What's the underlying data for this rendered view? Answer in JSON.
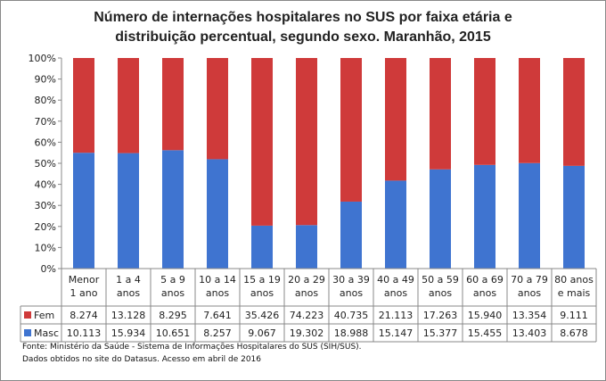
{
  "chart_data": {
    "type": "bar",
    "stacked": "percent",
    "title_line1": "Número de internações hospitalares no SUS por faixa etária e",
    "title_line2": "distribuição percentual, segundo sexo. Maranhão, 2015",
    "categories": [
      [
        "Menor",
        "1 ano"
      ],
      [
        "1 a 4",
        "anos"
      ],
      [
        "5 a 9",
        "anos"
      ],
      [
        "10 a 14",
        "anos"
      ],
      [
        "15 a 19",
        "anos"
      ],
      [
        "20 a 29",
        "anos"
      ],
      [
        "30 a 39",
        "anos"
      ],
      [
        "40 a 49",
        "anos"
      ],
      [
        "50 a 59",
        "anos"
      ],
      [
        "60 a 69",
        "anos"
      ],
      [
        "70 a 79",
        "anos"
      ],
      [
        "80 anos",
        "e mais"
      ]
    ],
    "series": [
      {
        "name": "Fem",
        "color": "#cf3a3a",
        "values": [
          8274,
          13128,
          8295,
          7641,
          35426,
          74223,
          40735,
          21113,
          17263,
          15940,
          13354,
          9111
        ],
        "labels": [
          "8.274",
          "13.128",
          "8.295",
          "7.641",
          "35.426",
          "74.223",
          "40.735",
          "21.113",
          "17.263",
          "15.940",
          "13.354",
          "9.111"
        ]
      },
      {
        "name": "Masc",
        "color": "#3f74d0",
        "values": [
          10113,
          15934,
          10651,
          8257,
          9067,
          19302,
          18988,
          15147,
          15377,
          15455,
          13403,
          8678
        ],
        "labels": [
          "10.113",
          "15.934",
          "10.651",
          "8.257",
          "9.067",
          "19.302",
          "18.988",
          "15.147",
          "15.377",
          "15.455",
          "13.403",
          "8.678"
        ]
      }
    ],
    "yticks": [
      "0%",
      "10%",
      "20%",
      "30%",
      "40%",
      "50%",
      "60%",
      "70%",
      "80%",
      "90%",
      "100%"
    ],
    "ylim": [
      0,
      100
    ],
    "grid": false,
    "legend": "data-table"
  },
  "source_line1": "Fonte: Ministério da Saúde - Sistema de Informações Hospitalares do SUS (SIH/SUS).",
  "source_line2": "Dados obtidos no site do Datasus. Acesso em abril de 2016"
}
